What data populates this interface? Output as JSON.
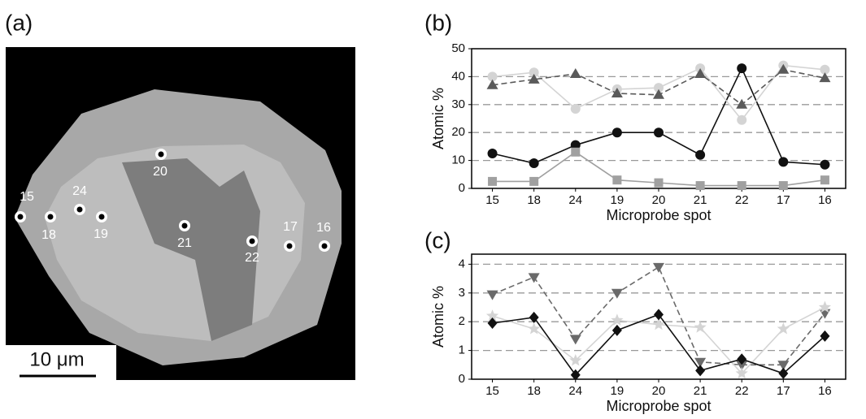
{
  "image_panel": {
    "label": "(a)",
    "spots": [
      "15",
      "18",
      "24",
      "19",
      "20",
      "21",
      "22",
      "17",
      "16"
    ],
    "scale_bar": "10 μm"
  },
  "chart_data": [
    {
      "type": "line",
      "label": "(b)",
      "x_label": "Microprobe spot",
      "y_label": "Atomic %",
      "categories": [
        "15",
        "18",
        "24",
        "19",
        "20",
        "21",
        "22",
        "17",
        "16"
      ],
      "ylim": [
        0,
        50
      ],
      "yticks": [
        0,
        10,
        20,
        30,
        40,
        50
      ],
      "grid": true,
      "series": [
        {
          "color": "#111111",
          "marker": "circle",
          "dash": false,
          "values": [
            12.5,
            9,
            15.5,
            20,
            20,
            12,
            43,
            9.5,
            8.5
          ]
        },
        {
          "color": "#d4d4d4",
          "marker": "circle",
          "dash": false,
          "values": [
            40,
            41.5,
            28.5,
            35.5,
            36,
            43,
            24.5,
            44,
            42.5
          ]
        },
        {
          "color": "#5a5a5a",
          "marker": "triangle",
          "dash": true,
          "values": [
            37,
            39,
            41,
            34,
            33.5,
            41,
            30,
            42.5,
            39.5
          ]
        },
        {
          "color": "#a0a0a0",
          "marker": "square",
          "dash": false,
          "values": [
            2.5,
            2.5,
            13,
            3,
            2,
            1,
            1,
            1,
            3
          ]
        }
      ]
    },
    {
      "type": "line",
      "label": "(c)",
      "x_label": "Microprobe spot",
      "y_label": "Atomic %",
      "categories": [
        "15",
        "18",
        "24",
        "19",
        "20",
        "21",
        "22",
        "17",
        "16"
      ],
      "ylim": [
        0,
        4.35
      ],
      "yticks": [
        0,
        1,
        2,
        3,
        4
      ],
      "grid": true,
      "series": [
        {
          "color": "#6a6a6a",
          "marker": "triangle-down",
          "dash": true,
          "values": [
            2.95,
            3.55,
            1.4,
            3.0,
            3.9,
            0.6,
            0.5,
            0.5,
            2.3
          ]
        },
        {
          "color": "#d4d4d4",
          "marker": "star",
          "dash": false,
          "values": [
            2.2,
            1.75,
            0.65,
            2.05,
            1.9,
            1.8,
            0.2,
            1.75,
            2.5
          ]
        },
        {
          "color": "#111111",
          "marker": "diamond",
          "dash": false,
          "values": [
            1.95,
            2.15,
            0.15,
            1.7,
            2.25,
            0.3,
            0.7,
            0.2,
            1.5
          ]
        }
      ]
    }
  ]
}
